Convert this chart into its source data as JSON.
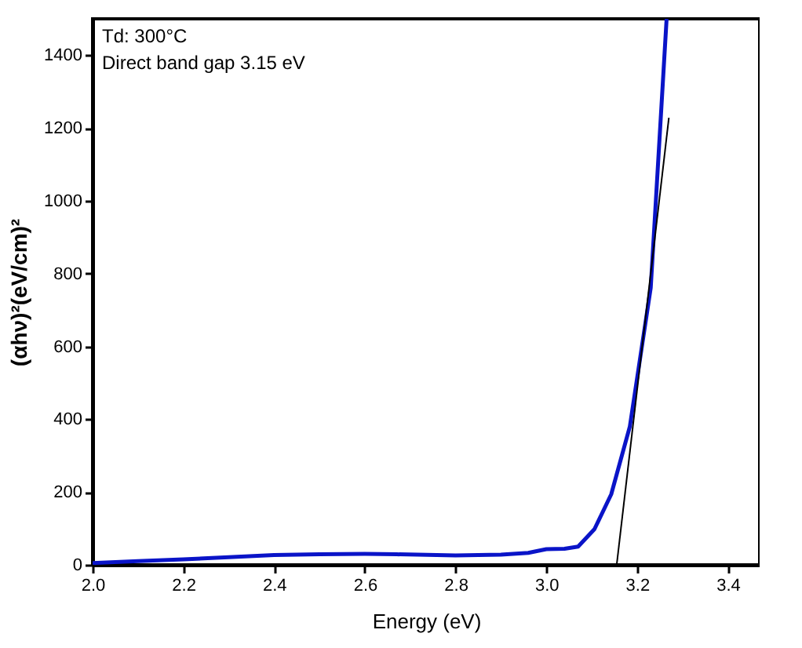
{
  "chart_data": {
    "type": "line",
    "xlabel": "Energy (eV)",
    "ylabel": "(αhν)²(eV/cm)²",
    "annotations": [
      "Td: 300°C",
      "Direct band gap 3.15 eV"
    ],
    "xlim": [
      2.0,
      3.47
    ],
    "xticks": [
      {
        "value": 2,
        "label": "2.0"
      },
      2.2,
      2.4,
      2.6,
      2.8,
      {
        "value": 3,
        "label": "3.0"
      },
      3.2,
      3.4
    ],
    "ylim": [
      0,
      1500
    ],
    "yticks": [
      0,
      200,
      400,
      600,
      800,
      1000,
      1200,
      1400
    ],
    "marker": "none",
    "line_style": "solid",
    "series": [
      {
        "color": "#0a14c8",
        "x": [
          2.0,
          2.1,
          2.2,
          2.3,
          2.4,
          2.5,
          2.6,
          2.67,
          2.8,
          2.9,
          2.96,
          3.0,
          3.04,
          3.07,
          3.106,
          3.143,
          3.184,
          3.23,
          3.265
        ],
        "values": [
          5,
          10,
          15,
          21,
          27,
          29,
          30,
          29,
          26,
          28,
          33,
          43,
          44,
          50,
          98,
          194,
          380,
          761,
          1500
        ]
      },
      {
        "color": "#000000",
        "x": [
          3.155,
          3.27
        ],
        "values": [
          0,
          1228
        ]
      }
    ]
  }
}
